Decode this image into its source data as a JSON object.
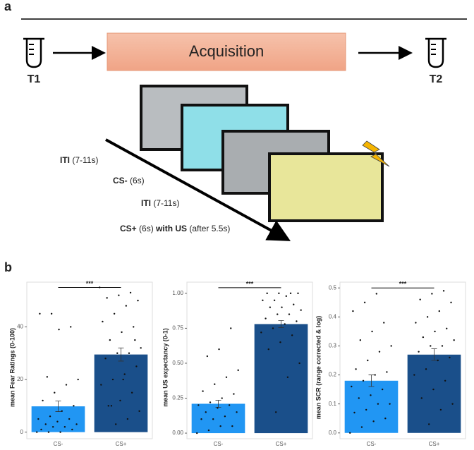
{
  "panel_a": {
    "label": "a",
    "box": "Acquisition",
    "t1": "T1",
    "t2": "T2",
    "steps": [
      {
        "bold": "ITI",
        "normal": "(7-11s)"
      },
      {
        "bold": "CS-",
        "normal": "(6s)"
      },
      {
        "bold": "ITI",
        "normal": "(7-11s)"
      },
      {
        "bold": "CS+",
        "normal": "(6s)",
        "bold2": "with US",
        "normal2": "(after 5.5s)"
      }
    ]
  },
  "panel_b_label": "b",
  "chart_data": [
    {
      "type": "bar",
      "y_label": "mean Fear Ratings (0-100)",
      "categories": [
        "CS-",
        "CS+"
      ],
      "values": [
        9.8,
        29.5
      ],
      "errors": [
        2,
        2.5
      ],
      "colors": [
        "#2196f3",
        "#1a4f8a"
      ],
      "points": [
        [
          0,
          0,
          0,
          1,
          1,
          2,
          2,
          3,
          3,
          4,
          5,
          5,
          6,
          8,
          10,
          12,
          15,
          18,
          20,
          21,
          39,
          40,
          45,
          45
        ],
        [
          3,
          5,
          8,
          10,
          12,
          15,
          18,
          20,
          22,
          25,
          28,
          30,
          30,
          32,
          35,
          38,
          40,
          42,
          45,
          48,
          50,
          51,
          52,
          53,
          55,
          10,
          20,
          35
        ]
      ],
      "ylim": [
        -2.5,
        57
      ],
      "yticks": [
        0,
        20,
        40
      ],
      "significance": {
        "label": "***",
        "y": 55
      }
    },
    {
      "type": "bar",
      "y_label": "mean US expectancy (0-1)",
      "categories": [
        "CS-",
        "CS+"
      ],
      "values": [
        0.21,
        0.78
      ],
      "errors": [
        0.025,
        0.025
      ],
      "colors": [
        "#2196f3",
        "#1a4f8a"
      ],
      "points": [
        [
          0,
          0.02,
          0.05,
          0.05,
          0.1,
          0.1,
          0.12,
          0.15,
          0.15,
          0.18,
          0.2,
          0.2,
          0.22,
          0.25,
          0.28,
          0.3,
          0.35,
          0.4,
          0.45,
          0.55,
          0.6,
          0.75
        ],
        [
          0.15,
          0.4,
          0.5,
          0.6,
          0.65,
          0.7,
          0.72,
          0.75,
          0.78,
          0.8,
          0.82,
          0.85,
          0.85,
          0.88,
          0.9,
          0.9,
          0.92,
          0.95,
          0.95,
          0.98,
          1,
          1,
          1,
          1
        ]
      ],
      "ylim": [
        -0.04,
        1.08
      ],
      "yticks": [
        {
          "value": 0,
          "label": "0.00"
        },
        0.25,
        {
          "value": 0.5,
          "label": "0.50"
        },
        0.75,
        {
          "value": 1,
          "label": "1.00"
        }
      ],
      "significance": {
        "label": "***",
        "y": 1.04
      }
    },
    {
      "type": "bar",
      "y_label": "mean SCR (range corrected & log)",
      "categories": [
        "CS-",
        "CS+"
      ],
      "values": [
        0.18,
        0.27
      ],
      "errors": [
        0.02,
        0.02
      ],
      "colors": [
        "#2196f3",
        "#1a4f8a"
      ],
      "points": [
        [
          0,
          0.02,
          0.04,
          0.05,
          0.07,
          0.08,
          0.1,
          0.1,
          0.12,
          0.13,
          0.15,
          0.16,
          0.18,
          0.2,
          0.21,
          0.22,
          0.25,
          0.28,
          0.3,
          0.32,
          0.35,
          0.38,
          0.42,
          0.45,
          0.48
        ],
        [
          0.03,
          0.08,
          0.1,
          0.12,
          0.15,
          0.18,
          0.2,
          0.22,
          0.25,
          0.26,
          0.28,
          0.3,
          0.3,
          0.32,
          0.33,
          0.35,
          0.36,
          0.38,
          0.4,
          0.42,
          0.45,
          0.46,
          0.48,
          0.49
        ]
      ],
      "ylim": [
        -0.02,
        0.52
      ],
      "yticks": [
        {
          "value": 0,
          "label": "0.0"
        },
        0.1,
        0.2,
        0.3,
        0.4,
        0.5
      ],
      "significance": {
        "label": "***",
        "y": 0.5
      }
    }
  ]
}
